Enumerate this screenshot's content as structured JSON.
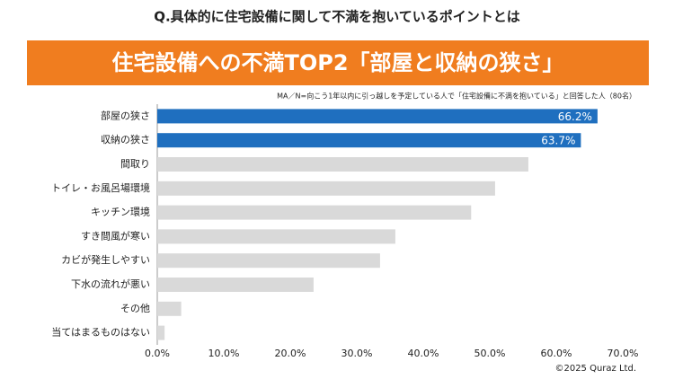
{
  "chart_data": {
    "type": "bar",
    "orientation": "horizontal",
    "title": "Q.具体的に住宅設備に関して不満を抱いているポイントとは",
    "subtitle": "住宅設備への不満TOP2「部屋と収納の狭さ」",
    "note": "MA／N=向こう1年以内に引っ越しを予定している人で「住宅設備に不満を抱いている」と回答した人（80名）",
    "source": "©2025 Quraz Ltd.",
    "categories": [
      "部屋の狭さ",
      "収納の狭さ",
      "間取り",
      "トイレ・お風呂場環境",
      "キッチン環境",
      "すき間風が寒い",
      "カビが発生しやすい",
      "下水の流れが悪い",
      "その他",
      "当てはまるものはない"
    ],
    "values": [
      66.2,
      63.7,
      55.8,
      50.8,
      47.2,
      35.8,
      33.5,
      23.5,
      3.6,
      1.1
    ],
    "value_labels": [
      "66.2%",
      "63.7%",
      null,
      null,
      null,
      null,
      null,
      null,
      null,
      null
    ],
    "colors": [
      "#1f6fbf",
      "#1f6fbf",
      "#d9d9d9",
      "#d9d9d9",
      "#d9d9d9",
      "#d9d9d9",
      "#d9d9d9",
      "#d9d9d9",
      "#d9d9d9",
      "#d9d9d9"
    ],
    "banner_color": "#f07d1f",
    "xlim": [
      0,
      70
    ],
    "xticks": [
      {
        "value": 0,
        "label": "0.0%"
      },
      {
        "value": 10,
        "label": "10.0%"
      },
      {
        "value": 20,
        "label": "20.0%"
      },
      {
        "value": 30,
        "label": "30.0%"
      },
      {
        "value": 40,
        "label": "40.0%"
      },
      {
        "value": 50,
        "label": "50.0%"
      },
      {
        "value": 60,
        "label": "60.0%"
      },
      {
        "value": 70,
        "label": "70.0%"
      }
    ],
    "grid": false
  }
}
